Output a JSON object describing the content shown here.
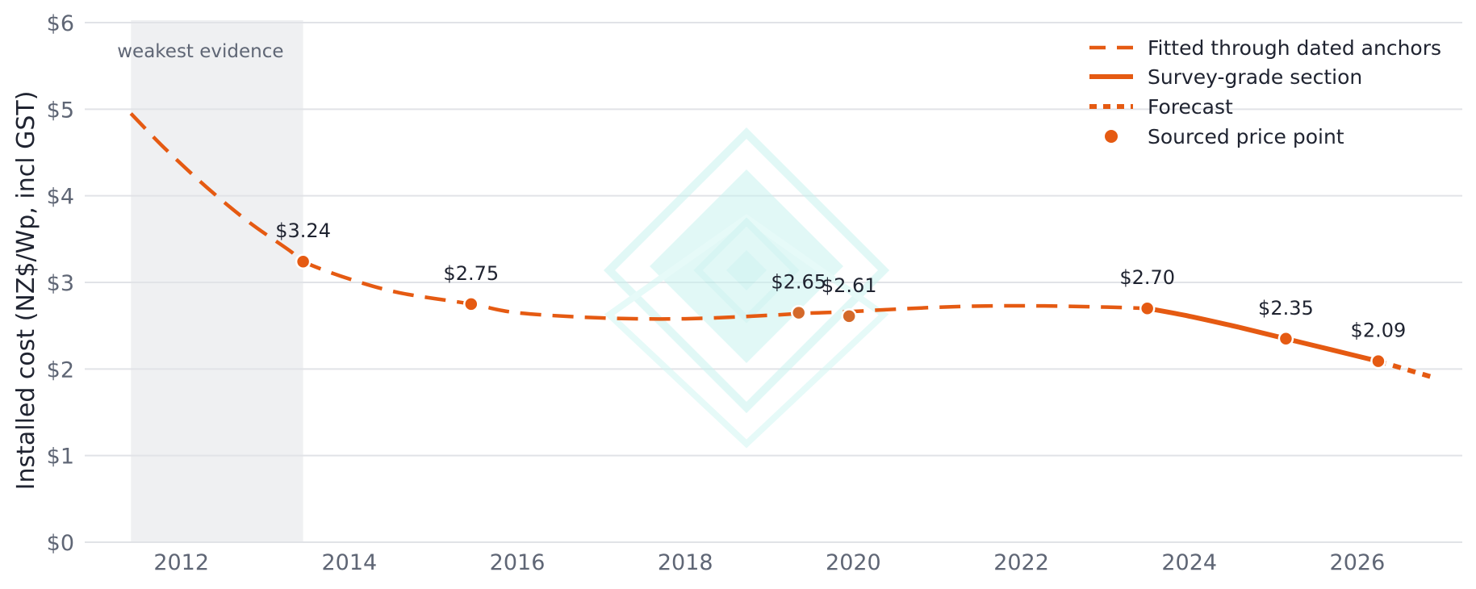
{
  "chart_data": {
    "type": "line",
    "title": "",
    "xlabel": "",
    "ylabel": "Installed cost (NZ$/Wp, incl GST)",
    "xlim": [
      2010.85,
      2027.25
    ],
    "ylim": [
      0,
      6
    ],
    "x_ticks": [
      2012,
      2014,
      2016,
      2018,
      2020,
      2022,
      2024,
      2026
    ],
    "x_tick_labels": [
      "2012",
      "2014",
      "2016",
      "2018",
      "2020",
      "2022",
      "2024",
      "2026"
    ],
    "y_ticks": [
      0,
      1,
      2,
      3,
      4,
      5,
      6
    ],
    "y_tick_labels": [
      "$0",
      "$1",
      "$2",
      "$3",
      "$4",
      "$5",
      "$6"
    ],
    "grid": "horizontal",
    "legend_position": "top-right",
    "shaded_band": {
      "x_start": 2011.4,
      "x_end": 2013.45,
      "label": "weakest evidence"
    },
    "series": [
      {
        "name": "Fitted through dated anchors",
        "style": "dashed",
        "x": [
          2011.4,
          2011.8,
          2012.3,
          2012.8,
          2013.3,
          2013.45,
          2014.0,
          2014.6,
          2015.45,
          2016.0,
          2017.0,
          2018.0,
          2019.0,
          2019.35,
          2019.9,
          2020.5,
          2021.2,
          2022.0,
          2022.8,
          2023.5
        ],
        "y": [
          4.95,
          4.55,
          4.1,
          3.7,
          3.36,
          3.24,
          3.04,
          2.88,
          2.75,
          2.65,
          2.59,
          2.58,
          2.62,
          2.64,
          2.66,
          2.69,
          2.72,
          2.73,
          2.72,
          2.7
        ]
      },
      {
        "name": "Survey-grade section",
        "style": "solid",
        "x": [
          2023.5,
          2024.0,
          2024.6,
          2025.15,
          2025.7,
          2026.25
        ],
        "y": [
          2.7,
          2.61,
          2.48,
          2.35,
          2.22,
          2.09
        ]
      },
      {
        "name": "Forecast",
        "style": "dotted",
        "x": [
          2026.25,
          2026.6,
          2026.95
        ],
        "y": [
          2.09,
          1.99,
          1.89
        ]
      },
      {
        "name": "Sourced price point",
        "style": "markers",
        "x": [
          2013.45,
          2015.45,
          2019.35,
          2019.95,
          2023.5,
          2025.15,
          2026.25
        ],
        "y": [
          3.24,
          2.75,
          2.65,
          2.61,
          2.7,
          2.35,
          2.09
        ],
        "labels": [
          "$3.24",
          "$2.75",
          "$2.65",
          "$2.61",
          "$2.70",
          "$2.35",
          "$2.09"
        ]
      }
    ],
    "colors": {
      "line": "#e55a12",
      "marker": "#e55a12",
      "marker_muted": "#d4692a",
      "band": "#eff0f2",
      "grid": "#e1e3e7",
      "watermark": "#c9f3f0"
    }
  }
}
